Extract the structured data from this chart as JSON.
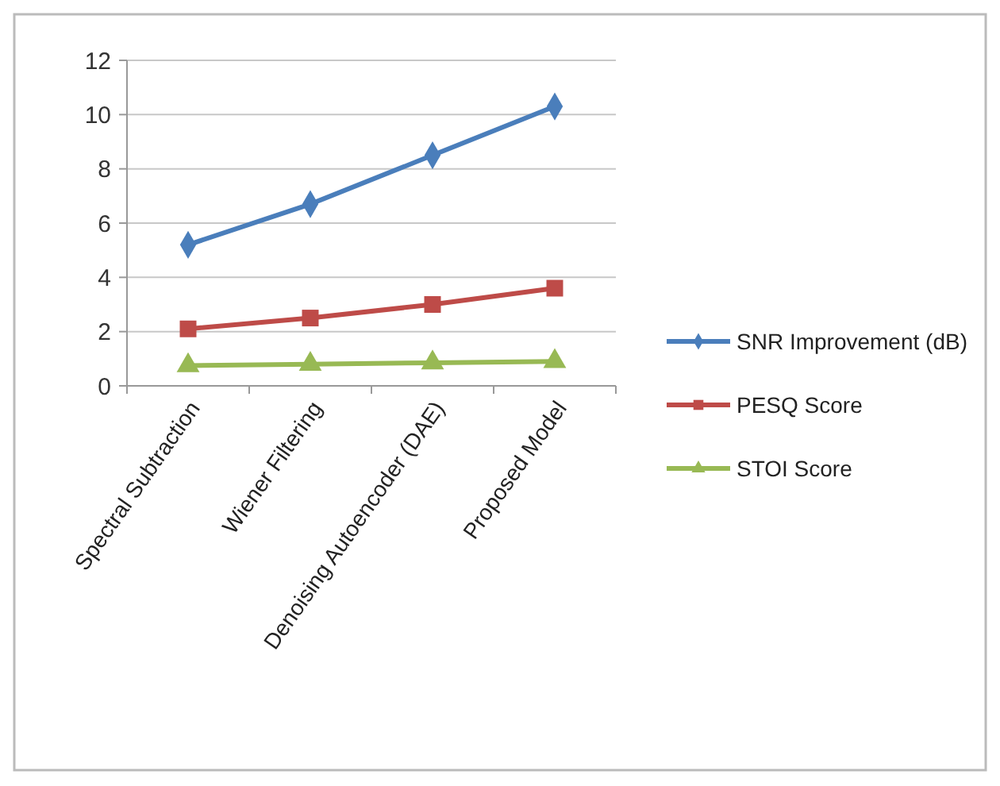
{
  "chart_data": {
    "type": "line",
    "categories": [
      "Spectral Subtraction",
      "Wiener Filtering",
      "Denoising Autoencoder (DAE)",
      "Proposed Model"
    ],
    "series": [
      {
        "name": "SNR Improvement (dB)",
        "color": "#4a7ebb",
        "marker": "diamond",
        "values": [
          5.2,
          6.7,
          8.5,
          10.3
        ]
      },
      {
        "name": "PESQ Score",
        "color": "#be4b48",
        "marker": "square",
        "values": [
          2.1,
          2.5,
          3.0,
          3.6
        ]
      },
      {
        "name": "STOI Score",
        "color": "#98b954",
        "marker": "triangle",
        "values": [
          0.75,
          0.8,
          0.85,
          0.9
        ]
      }
    ],
    "ylim": [
      0,
      12
    ],
    "yticks": [
      0,
      2,
      4,
      6,
      8,
      10,
      12
    ],
    "grid": "y",
    "legend": "right"
  }
}
